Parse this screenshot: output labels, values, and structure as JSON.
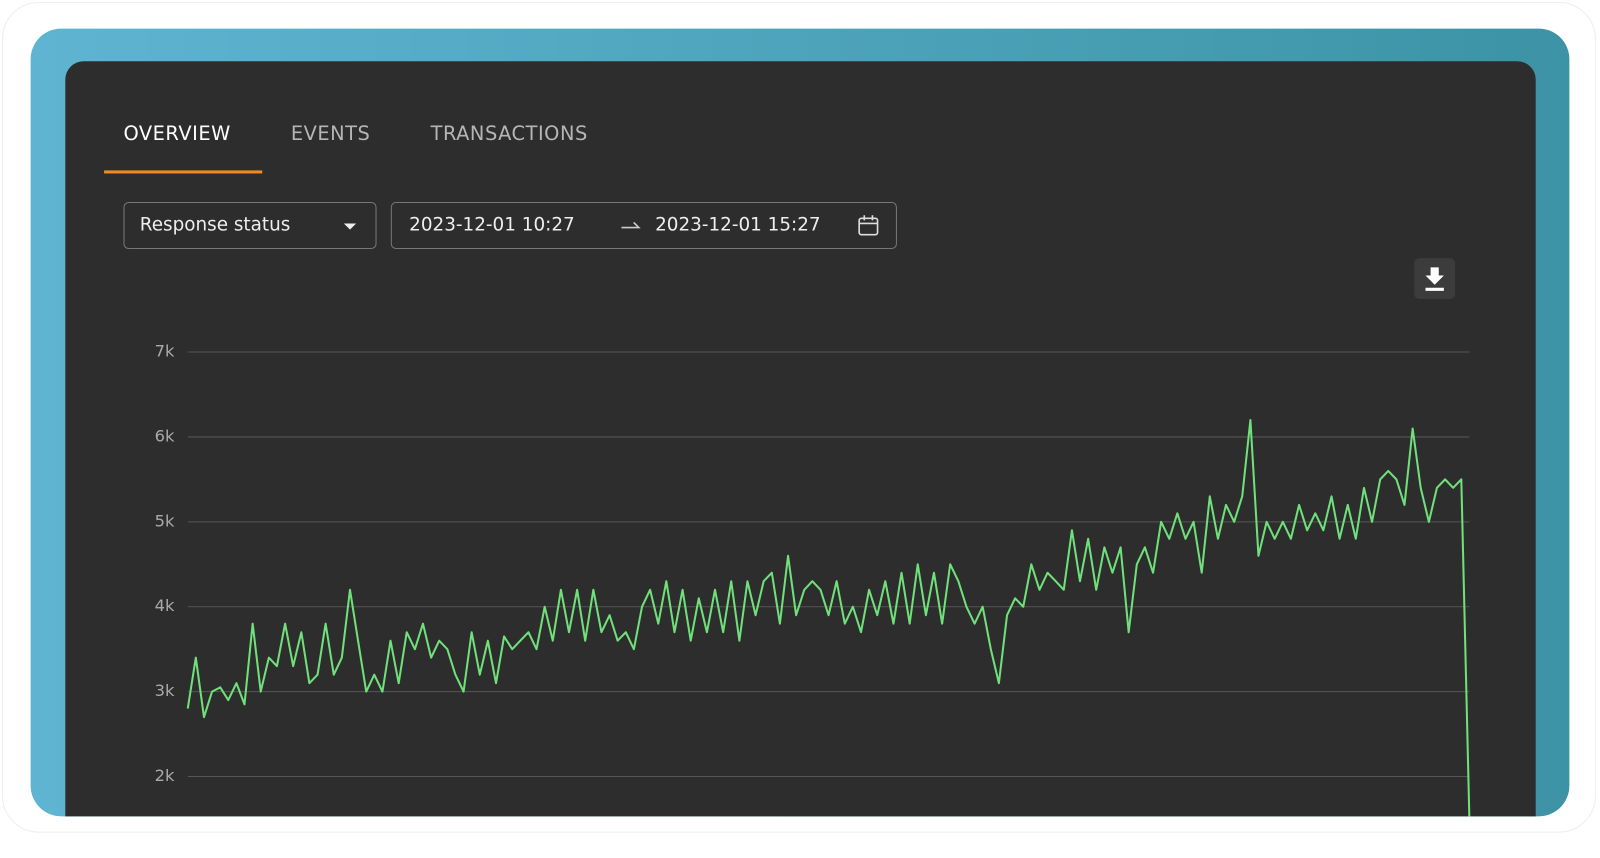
{
  "tabs": [
    "OVERVIEW",
    "EVENTS",
    "TRANSACTIONS"
  ],
  "filter": {
    "label": "Response status"
  },
  "date_range": {
    "start": "2023-12-01 10:27",
    "end": "2023-12-01 15:27"
  },
  "chart_data": {
    "type": "line",
    "ylim": [
      1500,
      7000
    ],
    "yticks": [
      {
        "value": 2000,
        "label": "2k"
      },
      {
        "value": 3000,
        "label": "3k"
      },
      {
        "value": 4000,
        "label": "4k"
      },
      {
        "value": 5000,
        "label": "5k"
      },
      {
        "value": 6000,
        "label": "6k"
      },
      {
        "value": 7000,
        "label": "7k"
      }
    ],
    "grid": true,
    "color": "#6fe07a",
    "values": [
      2800,
      3400,
      2700,
      3000,
      3050,
      2900,
      3100,
      2850,
      3800,
      3000,
      3400,
      3300,
      3800,
      3300,
      3700,
      3100,
      3200,
      3800,
      3200,
      3400,
      4200,
      3600,
      3000,
      3200,
      3000,
      3600,
      3100,
      3700,
      3500,
      3800,
      3400,
      3600,
      3500,
      3200,
      3000,
      3700,
      3200,
      3600,
      3100,
      3650,
      3500,
      3600,
      3700,
      3500,
      4000,
      3600,
      4200,
      3700,
      4200,
      3600,
      4200,
      3700,
      3900,
      3600,
      3700,
      3500,
      4000,
      4200,
      3800,
      4300,
      3700,
      4200,
      3600,
      4100,
      3700,
      4200,
      3700,
      4300,
      3600,
      4300,
      3900,
      4300,
      4400,
      3800,
      4600,
      3900,
      4200,
      4300,
      4200,
      3900,
      4300,
      3800,
      4000,
      3700,
      4200,
      3900,
      4300,
      3800,
      4400,
      3800,
      4500,
      3900,
      4400,
      3800,
      4500,
      4300,
      4000,
      3800,
      4000,
      3500,
      3100,
      3900,
      4100,
      4000,
      4500,
      4200,
      4400,
      4300,
      4200,
      4900,
      4300,
      4800,
      4200,
      4700,
      4400,
      4700,
      3700,
      4500,
      4700,
      4400,
      5000,
      4800,
      5100,
      4800,
      5000,
      4400,
      5300,
      4800,
      5200,
      5000,
      5300,
      6200,
      4600,
      5000,
      4800,
      5000,
      4800,
      5200,
      4900,
      5100,
      4900,
      5300,
      4800,
      5200,
      4800,
      5400,
      5000,
      5500,
      5600,
      5500,
      5200,
      6100,
      5400,
      5000,
      5400,
      5500,
      5400,
      5500,
      1500
    ]
  }
}
